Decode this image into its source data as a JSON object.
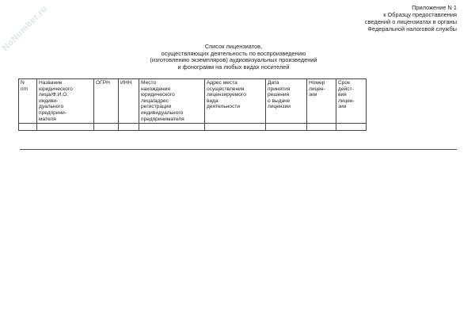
{
  "watermark": "NoNumber.ru",
  "appendix": [
    "Приложение N 1",
    "к Образцу предоставления",
    "сведений о лицензиатах в органы",
    "Федеральной налоговой службы"
  ],
  "title": [
    "Список лицензиатов,",
    "осуществляющих деятельность по воспроизведению",
    "(изготовлению экземпляров) аудиовизуальных произведений",
    "и фонограмм на любых видах носителей"
  ],
  "table": {
    "headers": [
      "N\nп/п",
      "Название\nюридического\nлица/Ф.И.О.\nиндиви-\nдуального\nпредприни-\nмателя",
      "ОГРН",
      "ИНН",
      "Место\nнахождения\nюридического\nлица/адрес\nрегистрации\nиндивидуального\nпредпринимателя",
      "Адрес места\nосуществления\nлицензируемого\nвида\nдеятельности",
      "Дата\nпринятия\nрешения\nо выдаче\nлицензии",
      "Номер\nлицен-\nзии",
      "Срок\nдейст-\nвия\nлицен-\nзии"
    ]
  }
}
